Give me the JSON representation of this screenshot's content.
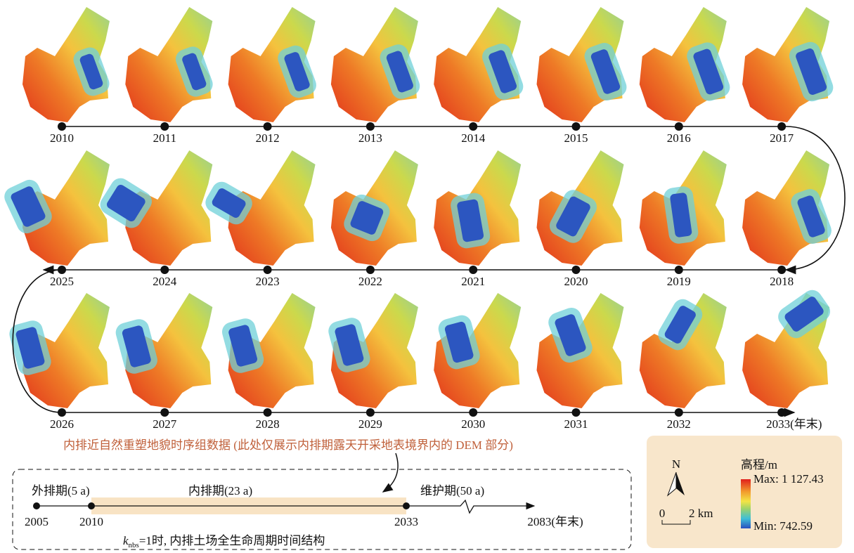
{
  "years": [
    "2010",
    "2011",
    "2012",
    "2013",
    "2014",
    "2015",
    "2016",
    "2017",
    "2018",
    "2019",
    "2020",
    "2021",
    "2022",
    "2023",
    "2024",
    "2025",
    "2026",
    "2027",
    "2028",
    "2029",
    "2030",
    "2031",
    "2032",
    "2033(年末)"
  ],
  "caption": "内排近自然重塑地貌时序组数据 (此处仅展示内排期露天开采地表境界内的 DEM 部分)",
  "timeline": {
    "phases": [
      "外排期(5 a)",
      "内排期(23 a)",
      "维护期(50 a)"
    ],
    "points": [
      "2005",
      "2010",
      "2033",
      "2083(年末)"
    ],
    "note": {
      "var": "k",
      "sub": "nbs",
      "text": "=1时, 内排土场全生命周期时间结构"
    }
  },
  "legend": {
    "north": "N",
    "scale_start": "0",
    "scale_end": "2 km",
    "title": "高程/m",
    "max": "Max: 1 127.43",
    "min": "Min: 742.59"
  }
}
